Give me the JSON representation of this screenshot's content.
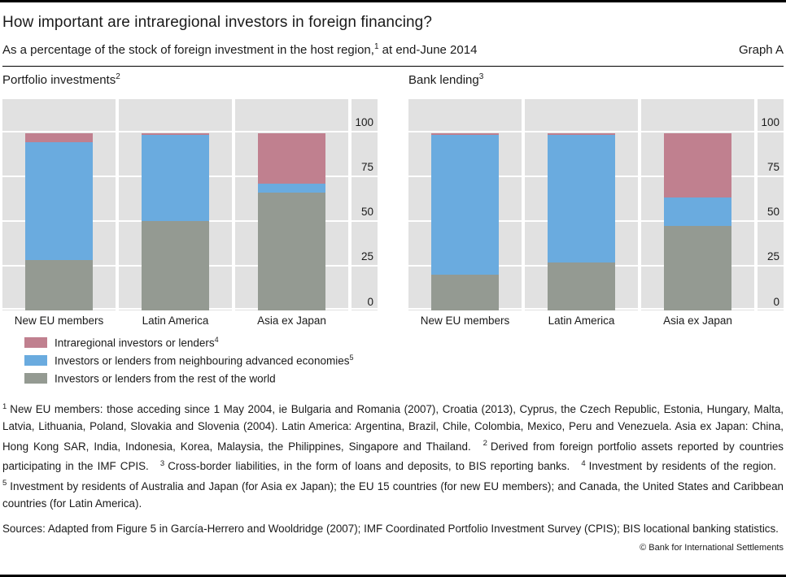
{
  "header": {
    "title": "How important are intraregional investors in foreign financing?",
    "subtitle_main": "As a percentage of the stock of foreign investment in the host region,",
    "subtitle_footnote_ref": "1",
    "subtitle_suffix": " at end-June 2014",
    "graph_label": "Graph A"
  },
  "colors": {
    "intraregional": "#c0808f",
    "advanced_economies": "#6aabdf",
    "rest_of_world": "#949a92",
    "panel_background": "#e1e1e1",
    "gridline": "#ffffff",
    "rule": "#000000"
  },
  "chart_data": [
    {
      "type": "bar",
      "stacked": true,
      "title": "Portfolio investments",
      "title_footnote_ref": "2",
      "categories": [
        "New EU members",
        "Latin America",
        "Asia ex Japan"
      ],
      "series": [
        {
          "name": "Investors or lenders from the rest of the world",
          "color_key": "rest_of_world",
          "values": [
            28,
            50,
            66
          ]
        },
        {
          "name": "Investors or lenders from neighbouring advanced economies",
          "color_key": "advanced_economies",
          "values": [
            66,
            48,
            5
          ]
        },
        {
          "name": "Intraregional investors or lenders",
          "color_key": "intraregional",
          "values": [
            5,
            1,
            28
          ]
        }
      ],
      "yticks": [
        0,
        25,
        50,
        75,
        100
      ],
      "ylim": [
        0,
        118
      ],
      "unit": "percent",
      "grid": "horizontal-white-on-grey",
      "ticks_position": "right"
    },
    {
      "type": "bar",
      "stacked": true,
      "title": "Bank lending",
      "title_footnote_ref": "3",
      "categories": [
        "New EU members",
        "Latin America",
        "Asia ex Japan"
      ],
      "series": [
        {
          "name": "Investors or lenders from the rest of the world",
          "color_key": "rest_of_world",
          "values": [
            20,
            27,
            47
          ]
        },
        {
          "name": "Investors or lenders from neighbouring advanced economies",
          "color_key": "advanced_economies",
          "values": [
            78,
            71,
            16
          ]
        },
        {
          "name": "Intraregional investors or lenders",
          "color_key": "intraregional",
          "values": [
            1,
            1,
            36
          ]
        }
      ],
      "yticks": [
        0,
        25,
        50,
        75,
        100
      ],
      "ylim": [
        0,
        118
      ],
      "unit": "percent",
      "grid": "horizontal-white-on-grey",
      "ticks_position": "right"
    }
  ],
  "legend": {
    "items": [
      {
        "label": "Intraregional investors or lenders",
        "sup": "4",
        "color_key": "intraregional"
      },
      {
        "label": "Investors or lenders from neighbouring advanced economies",
        "sup": "5",
        "color_key": "advanced_economies"
      },
      {
        "label": "Investors or lenders from the rest of the world",
        "sup": "",
        "color_key": "rest_of_world"
      }
    ]
  },
  "footnotes": [
    {
      "ref": "1",
      "text": "New EU members: those acceding since 1 May 2004, ie Bulgaria and Romania (2007), Croatia (2013), Cyprus, the Czech Republic, Estonia, Hungary, Malta, Latvia, Lithuania, Poland, Slovakia and Slovenia (2004). Latin America: Argentina, Brazil, Chile, Colombia, Mexico, Peru and Venezuela. Asia ex Japan: China, Hong Kong SAR, India, Indonesia, Korea, Malaysia, the Philippines, Singapore and Thailand."
    },
    {
      "ref": "2",
      "text": "Derived from foreign portfolio assets reported by countries participating in the IMF CPIS."
    },
    {
      "ref": "3",
      "text": "Cross-border liabilities, in the form of loans and deposits, to BIS reporting banks."
    },
    {
      "ref": "4",
      "text": "Investment by residents of the region."
    },
    {
      "ref": "5",
      "text": "Investment by residents of Australia and Japan (for Asia ex Japan); the EU 15 countries (for new EU members); and Canada, the United States and Caribbean countries (for Latin America)."
    }
  ],
  "sources": "Sources: Adapted from Figure 5 in García-Herrero and Wooldridge (2007); IMF Coordinated Portfolio Investment Survey (CPIS); BIS locational banking statistics.",
  "copyright": "© Bank for International Settlements"
}
